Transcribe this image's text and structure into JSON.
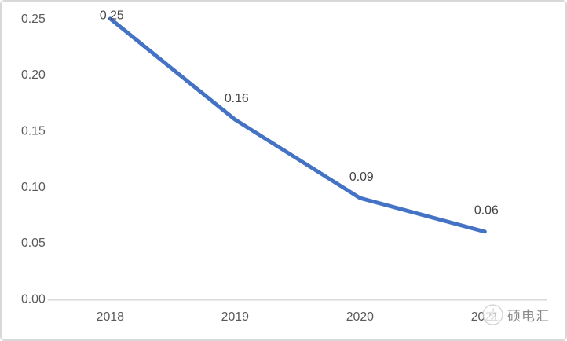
{
  "chart_data": {
    "type": "line",
    "categories": [
      "2018",
      "2019",
      "2020",
      "2021"
    ],
    "values": [
      0.25,
      0.16,
      0.09,
      0.06
    ],
    "data_labels": [
      "0.25",
      "0.16",
      "0.09",
      "0.06"
    ],
    "series_name": "",
    "title": "",
    "xlabel": "",
    "ylabel": "",
    "ylim": [
      0,
      0.25
    ],
    "yticks": [
      0,
      0.05,
      0.1,
      0.15,
      0.2,
      0.25
    ],
    "ytick_labels": [
      "0.00",
      "0.05",
      "0.10",
      "0.15",
      "0.20",
      "0.25"
    ],
    "grid": false,
    "legend": false
  },
  "colors": {
    "line": "#4472C4",
    "axis_line": "#d9d9d9",
    "tick_label": "#595959",
    "data_label": "#444444",
    "frame_border": "#d8d8d8",
    "watermark_text": "#8a8a8a"
  },
  "watermark": {
    "icon": "logo-circle-icon",
    "text": "硕电汇"
  }
}
